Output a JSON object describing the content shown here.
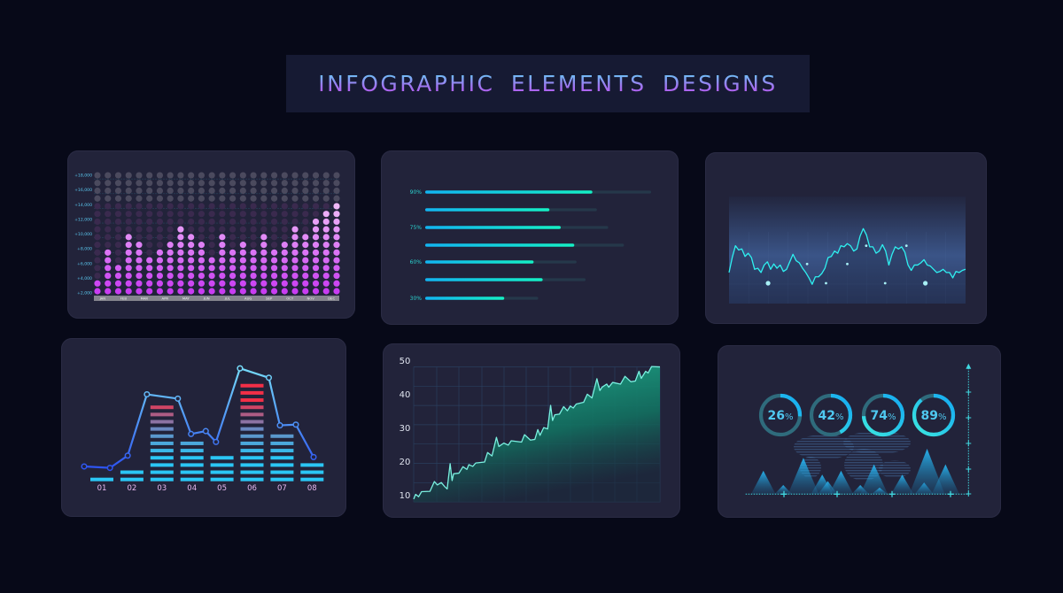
{
  "title": "INFOGRAPHIC ELEMENTS DESIGNS",
  "chart_data": [
    {
      "type": "dot-matrix-bar",
      "y_tick_labels": [
        "+18,000",
        "+16,000",
        "+14,000",
        "+12,000",
        "+10,000",
        "+8,000",
        "+6,000",
        "+4,000",
        "+2,000"
      ],
      "x_labels": [
        "JAN",
        "FEB",
        "MAR",
        "APR",
        "MAY",
        "JUN",
        "JUL",
        "AUG",
        "SEP",
        "OCT",
        "NOV",
        "DEC"
      ],
      "rows_total": 16,
      "filled_dots": [
        2,
        6,
        4,
        8,
        7,
        5,
        6,
        7,
        9,
        8,
        7,
        5,
        8,
        6,
        7,
        6,
        8,
        6,
        7,
        9,
        8,
        10,
        11,
        12
      ],
      "colors": {
        "filled": "#c93cf2",
        "filled_top": "#f0b8f8",
        "empty": "#3a2a4e",
        "empty_top": "#4b4a5e",
        "tick": "#5bc8f0"
      }
    },
    {
      "type": "progress-bars",
      "bars": [
        {
          "label": "90%",
          "fill": 0.74,
          "track": 1.0
        },
        {
          "label": "",
          "fill": 0.55,
          "track": 0.76
        },
        {
          "label": "75%",
          "fill": 0.6,
          "track": 0.81
        },
        {
          "label": "",
          "fill": 0.66,
          "track": 0.88
        },
        {
          "label": "60%",
          "fill": 0.48,
          "track": 0.67
        },
        {
          "label": "",
          "fill": 0.52,
          "track": 0.71
        },
        {
          "label": "30%",
          "fill": 0.35,
          "track": 0.5
        }
      ],
      "colors": {
        "start": "#12b4f2",
        "end": "#14f0c4",
        "track": "#25384a",
        "label": "#2bd3d0"
      }
    },
    {
      "type": "line",
      "values": [
        29,
        43,
        54,
        50,
        51,
        44,
        47,
        43,
        32,
        33,
        29,
        36,
        39,
        32,
        37,
        33,
        36,
        30,
        32,
        39,
        46,
        40,
        38,
        33,
        29,
        24,
        18,
        25,
        25,
        28,
        33,
        43,
        44,
        49,
        47,
        54,
        53,
        56,
        54,
        49,
        51,
        63,
        70,
        64,
        53,
        53,
        47,
        49,
        55,
        49,
        36,
        46,
        53,
        51,
        53,
        48,
        36,
        31,
        36,
        36,
        38,
        41,
        36,
        35,
        32,
        29,
        30,
        32,
        29,
        29,
        24,
        30,
        29,
        31,
        32
      ],
      "markers": [
        [
          16.5,
          19,
          "large"
        ],
        [
          33,
          37,
          "small"
        ],
        [
          41,
          19,
          "small"
        ],
        [
          50,
          37,
          "small"
        ],
        [
          58,
          54,
          "small"
        ],
        [
          66,
          19,
          "small"
        ],
        [
          75,
          54,
          "small"
        ],
        [
          83,
          19,
          "large"
        ]
      ],
      "colors": {
        "line": "#2ef0f0",
        "marker": "#a8f0f5"
      }
    },
    {
      "type": "bar+line",
      "categories": [
        "01",
        "02",
        "03",
        "04",
        "05",
        "06",
        "07",
        "08"
      ],
      "bar_segments": [
        1,
        2,
        11,
        6,
        4,
        14,
        7,
        3
      ],
      "line": {
        "x": [
          0.41,
          1.27,
          1.86,
          2.5,
          3.53,
          3.97,
          4.46,
          4.8,
          5.6,
          6.56,
          6.93,
          7.46,
          8.05
        ],
        "y": [
          1.8,
          1.6,
          3.3,
          11.8,
          11.2,
          6.3,
          6.7,
          5.2,
          15.4,
          14.1,
          7.5,
          7.6,
          3.1
        ]
      },
      "colors": {
        "low": "#2bc6f5",
        "mid": "#6a88c0",
        "high": "#f22f47",
        "line_low": "#2340f0",
        "line_high": "#70d8f8",
        "label": "#e8b8f0"
      }
    },
    {
      "type": "area",
      "ylim": [
        8,
        50
      ],
      "y_ticks": [
        50,
        40,
        30,
        20,
        10
      ],
      "x": [
        0,
        0.8,
        2,
        3.2,
        6.6,
        8.4,
        9.6,
        11.2,
        12.6,
        13.6,
        14.8,
        15.6,
        16.2,
        18.4,
        20,
        21.6,
        22.4,
        24,
        25.2,
        28.8,
        30,
        31.8,
        33.6,
        34.6,
        36.6,
        38.4,
        39.6,
        43.8,
        45,
        47.4,
        49.2,
        50.4,
        51.3,
        52.8,
        54.4,
        55.6,
        56.4,
        57.3,
        59.2,
        60.9,
        62.4,
        63.6,
        64.8,
        66,
        69,
        70.5,
        72.4,
        74.4,
        75.6,
        76.5,
        78.4,
        79.2,
        80.8,
        84,
        85.8,
        88.2,
        90,
        91.5,
        92.4,
        94.2,
        95.2,
        96.6,
        100
      ],
      "y": [
        8.9,
        10.3,
        9.6,
        11.1,
        11.2,
        14.1,
        13.1,
        13.8,
        12.6,
        11.9,
        19.4,
        14.4,
        16.4,
        16.6,
        18.5,
        17.7,
        19.1,
        18.6,
        19.6,
        19.9,
        22.7,
        21.7,
        27.2,
        24.5,
        25.5,
        24.9,
        26.2,
        25.8,
        28.0,
        26.4,
        26.6,
        29.5,
        27.8,
        30.1,
        29.7,
        36.7,
        32.2,
        33.9,
        34.1,
        36.3,
        35.1,
        36.5,
        35.9,
        37.1,
        37.6,
        40.0,
        38.9,
        44.6,
        41.1,
        42.1,
        43.0,
        42.1,
        43.5,
        43.0,
        45.3,
        43.7,
        43.9,
        46.8,
        44.7,
        46.8,
        46.3,
        48.2,
        48.1
      ],
      "grid": true,
      "colors": {
        "line": "#7af0e0",
        "area": "#1ba88c",
        "grid": "#2a3f5e",
        "tick": "#dfe3ee"
      }
    },
    {
      "type": "donuts+peaks",
      "donuts": [
        {
          "value": 26,
          "label": "26",
          "unit": "%"
        },
        {
          "value": 42,
          "label": "42",
          "unit": "%"
        },
        {
          "value": 74,
          "label": "74",
          "unit": "%"
        },
        {
          "value": 89,
          "label": "89",
          "unit": "%"
        }
      ],
      "peaks": [
        [
          8.3,
          18
        ],
        [
          17.6,
          7
        ],
        [
          27,
          28
        ],
        [
          35.8,
          15
        ],
        [
          38.4,
          10
        ],
        [
          44.6,
          18
        ],
        [
          53.6,
          7
        ],
        [
          60,
          23
        ],
        [
          62.6,
          5
        ],
        [
          73.2,
          15
        ],
        [
          83.4,
          9
        ],
        [
          84.8,
          35
        ],
        [
          93.4,
          23
        ]
      ],
      "colors": {
        "donut_track": "#2f6b7c",
        "donut_fill": "#1fb8f0",
        "text": "#4fc8f0",
        "peak": "#20b0f0",
        "axis": "#40d8e0"
      }
    }
  ]
}
